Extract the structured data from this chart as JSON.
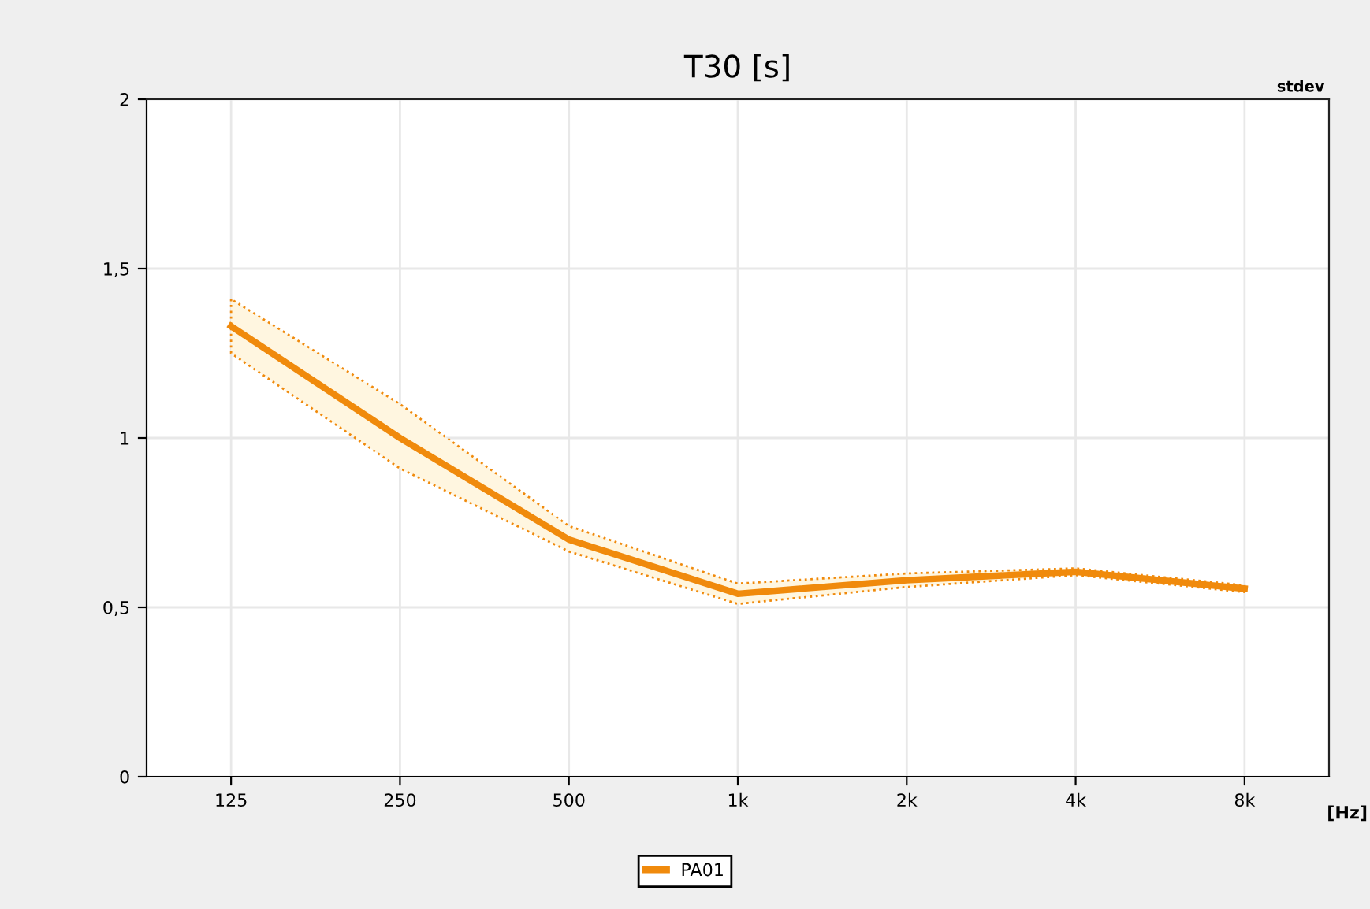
{
  "chart_data": {
    "type": "line",
    "title": "T30 [s]",
    "xlabel": "[Hz]",
    "annotations": [
      "stdev"
    ],
    "categories": [
      "125",
      "250",
      "500",
      "1k",
      "2k",
      "4k",
      "8k"
    ],
    "series": [
      {
        "name": "PA01",
        "color": "#f08a0c",
        "values": [
          1.33,
          1.0,
          0.7,
          0.54,
          0.58,
          0.605,
          0.555
        ],
        "upper": [
          1.41,
          1.1,
          0.74,
          0.57,
          0.6,
          0.615,
          0.565
        ],
        "lower": [
          1.25,
          0.91,
          0.665,
          0.51,
          0.56,
          0.595,
          0.545
        ]
      }
    ],
    "ylim": [
      0,
      2
    ],
    "yticks": [
      0,
      {
        "value": 0.5,
        "label": "0,5"
      },
      1,
      {
        "value": 1.5,
        "label": "1,5"
      },
      2
    ],
    "grid": true,
    "legend": "bottom",
    "marker": "none",
    "line_style": "solid"
  }
}
